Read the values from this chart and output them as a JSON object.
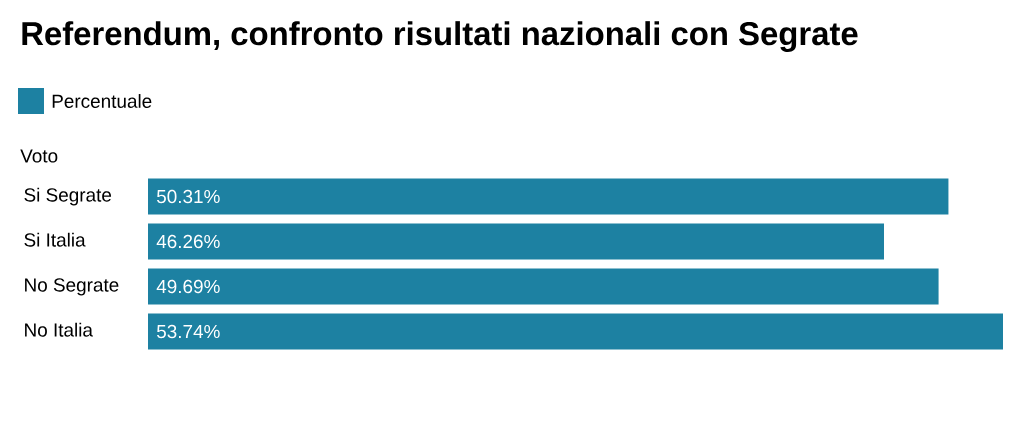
{
  "chart_data": {
    "type": "bar",
    "orientation": "horizontal",
    "title": "Referendum, confronto risultati nazionali con Segrate",
    "ylabel": "Voto",
    "categories": [
      "Si Segrate",
      "Si Italia",
      "No Segrate",
      "No Italia"
    ],
    "series": [
      {
        "name": "Percentuale",
        "color": "#1d81a2",
        "values": [
          50.31,
          46.26,
          49.69,
          53.74
        ],
        "value_labels": [
          "50.31%",
          "46.26%",
          "49.69%",
          "53.74%"
        ]
      }
    ],
    "legend": "top left",
    "tick_labels": "y"
  }
}
